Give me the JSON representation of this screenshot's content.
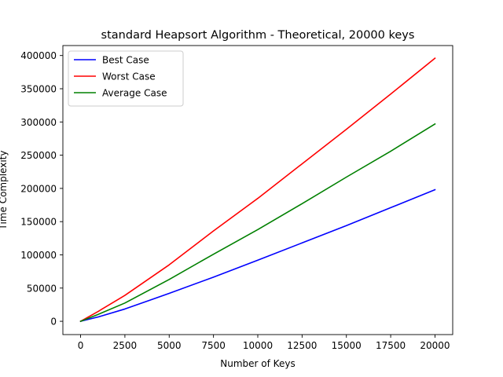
{
  "chart_data": {
    "type": "line",
    "title": "standard Heapsort Algorithm - Theoretical, 20000 keys",
    "xlabel": "Number of Keys",
    "ylabel": "Time Complexity",
    "xlim": [
      -1000,
      21000
    ],
    "ylim": [
      -20000,
      415000
    ],
    "xticks": [
      0,
      2500,
      5000,
      7500,
      10000,
      12500,
      15000,
      17500,
      20000
    ],
    "yticks": [
      0,
      50000,
      100000,
      150000,
      200000,
      250000,
      300000,
      350000,
      400000
    ],
    "grid": false,
    "legend_position": "upper-left",
    "x": [
      1,
      1000,
      2500,
      5000,
      7500,
      10000,
      12500,
      15000,
      17500,
      20000
    ],
    "series": [
      {
        "name": "Best Case",
        "color": "#0000ff",
        "values": [
          0,
          6600,
          18500,
          42000,
          66500,
          92000,
          118000,
          144000,
          171000,
          198000
        ]
      },
      {
        "name": "Worst Case",
        "color": "#ff0000",
        "values": [
          0,
          15000,
          39000,
          85000,
          136000,
          185000,
          237000,
          289000,
          342000,
          396000
        ]
      },
      {
        "name": "Average Case",
        "color": "#008000",
        "values": [
          0,
          10500,
          27500,
          63000,
          101000,
          138000,
          177000,
          217000,
          256000,
          297000
        ]
      }
    ]
  }
}
